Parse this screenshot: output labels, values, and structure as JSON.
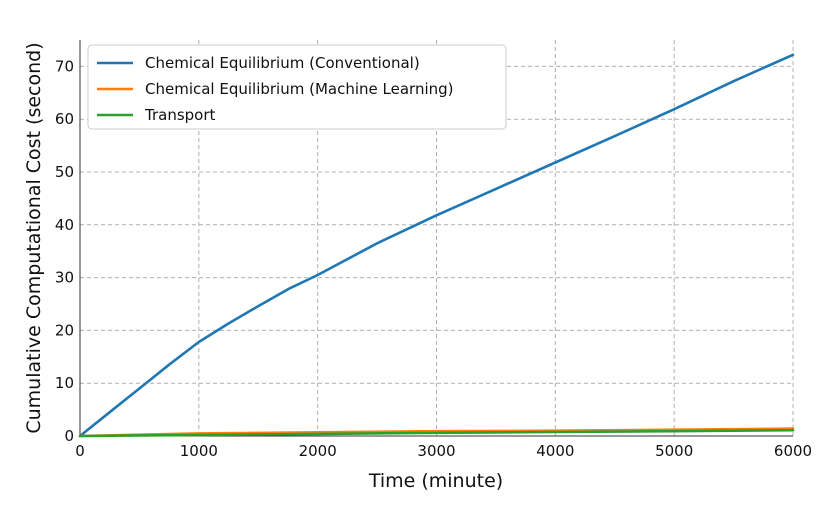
{
  "chart_data": {
    "type": "line",
    "xlabel": "Time (minute)",
    "ylabel": "Cumulative Computational Cost (second)",
    "xlim": [
      0,
      6000
    ],
    "ylim": [
      0,
      75
    ],
    "xticks": [
      0,
      1000,
      2000,
      3000,
      4000,
      5000,
      6000
    ],
    "yticks": [
      0,
      10,
      20,
      30,
      40,
      50,
      60,
      70
    ],
    "grid": true,
    "legend_position": "top-left",
    "series": [
      {
        "name": "Chemical Equilibrium (Conventional)",
        "color": "#1f77b4",
        "x": [
          0,
          250,
          500,
          750,
          1000,
          1250,
          1500,
          1750,
          2000,
          2500,
          3000,
          3500,
          4000,
          4500,
          5000,
          5500,
          6000
        ],
        "y": [
          0,
          4.5,
          9,
          13.5,
          17.8,
          21.3,
          24.6,
          27.8,
          30.5,
          36.5,
          41.8,
          46.8,
          51.8,
          56.8,
          61.9,
          67.2,
          72.2
        ]
      },
      {
        "name": "Chemical Equilibrium (Machine Learning)",
        "color": "#ff7f0e",
        "x": [
          0,
          1000,
          2000,
          3000,
          4000,
          5000,
          6000
        ],
        "y": [
          0,
          0.5,
          0.7,
          0.9,
          1.0,
          1.2,
          1.4
        ]
      },
      {
        "name": "Transport",
        "color": "#2ca02c",
        "x": [
          0,
          1000,
          2000,
          3000,
          4000,
          5000,
          6000
        ],
        "y": [
          0,
          0.2,
          0.4,
          0.6,
          0.75,
          0.9,
          1.1
        ]
      }
    ]
  }
}
